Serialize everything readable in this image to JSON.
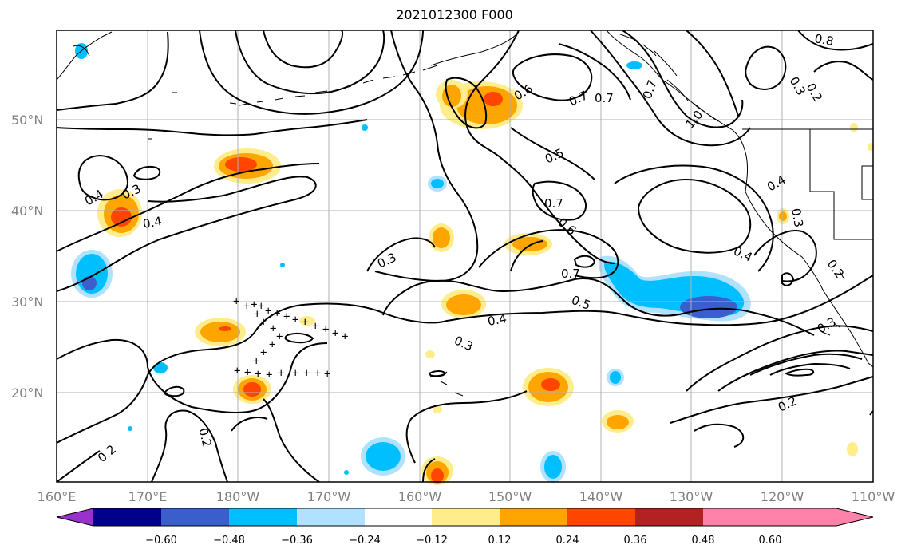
{
  "title": "2021012300 F000",
  "lat_labels": [
    "50°N",
    "40°N",
    "30°N",
    "20°N"
  ],
  "lon_labels": [
    "160°E",
    "170°E",
    "180°W",
    "170°W",
    "160°W",
    "150°W",
    "140°W",
    "130°W",
    "120°W",
    "110°W"
  ],
  "colorbar": {
    "ticks": [
      "−0.60",
      "−0.48",
      "−0.36",
      "−0.24",
      "−0.12",
      "0.12",
      "0.24",
      "0.36",
      "0.48",
      "0.60"
    ],
    "colors": [
      "#9932cc",
      "#00008b",
      "#3a5fcd",
      "#00bfff",
      "#b0e2ff",
      "#ffffff",
      "#ffec8b",
      "#ffa500",
      "#ff4500",
      "#b22222",
      "#ff82ab"
    ]
  },
  "contour_labels": [
    {
      "text": "0.8"
    },
    {
      "text": "0.3"
    },
    {
      "text": "0.2"
    },
    {
      "text": "0.6"
    },
    {
      "text": "0.7"
    },
    {
      "text": "0.7"
    },
    {
      "text": "0.7"
    },
    {
      "text": "1.0"
    },
    {
      "text": "0.5"
    },
    {
      "text": "0.4"
    },
    {
      "text": "0.3"
    },
    {
      "text": "0.4"
    },
    {
      "text": "0.7"
    },
    {
      "text": "0.6"
    },
    {
      "text": "0.4"
    },
    {
      "text": "0.3"
    },
    {
      "text": "0.4"
    },
    {
      "text": "0.3"
    },
    {
      "text": "0.7"
    },
    {
      "text": "0.5"
    },
    {
      "text": "0.2"
    },
    {
      "text": "0.4"
    },
    {
      "text": "0.3"
    },
    {
      "text": "0.3"
    },
    {
      "text": "0.2"
    },
    {
      "text": "0.2"
    },
    {
      "text": "0.2"
    }
  ]
}
